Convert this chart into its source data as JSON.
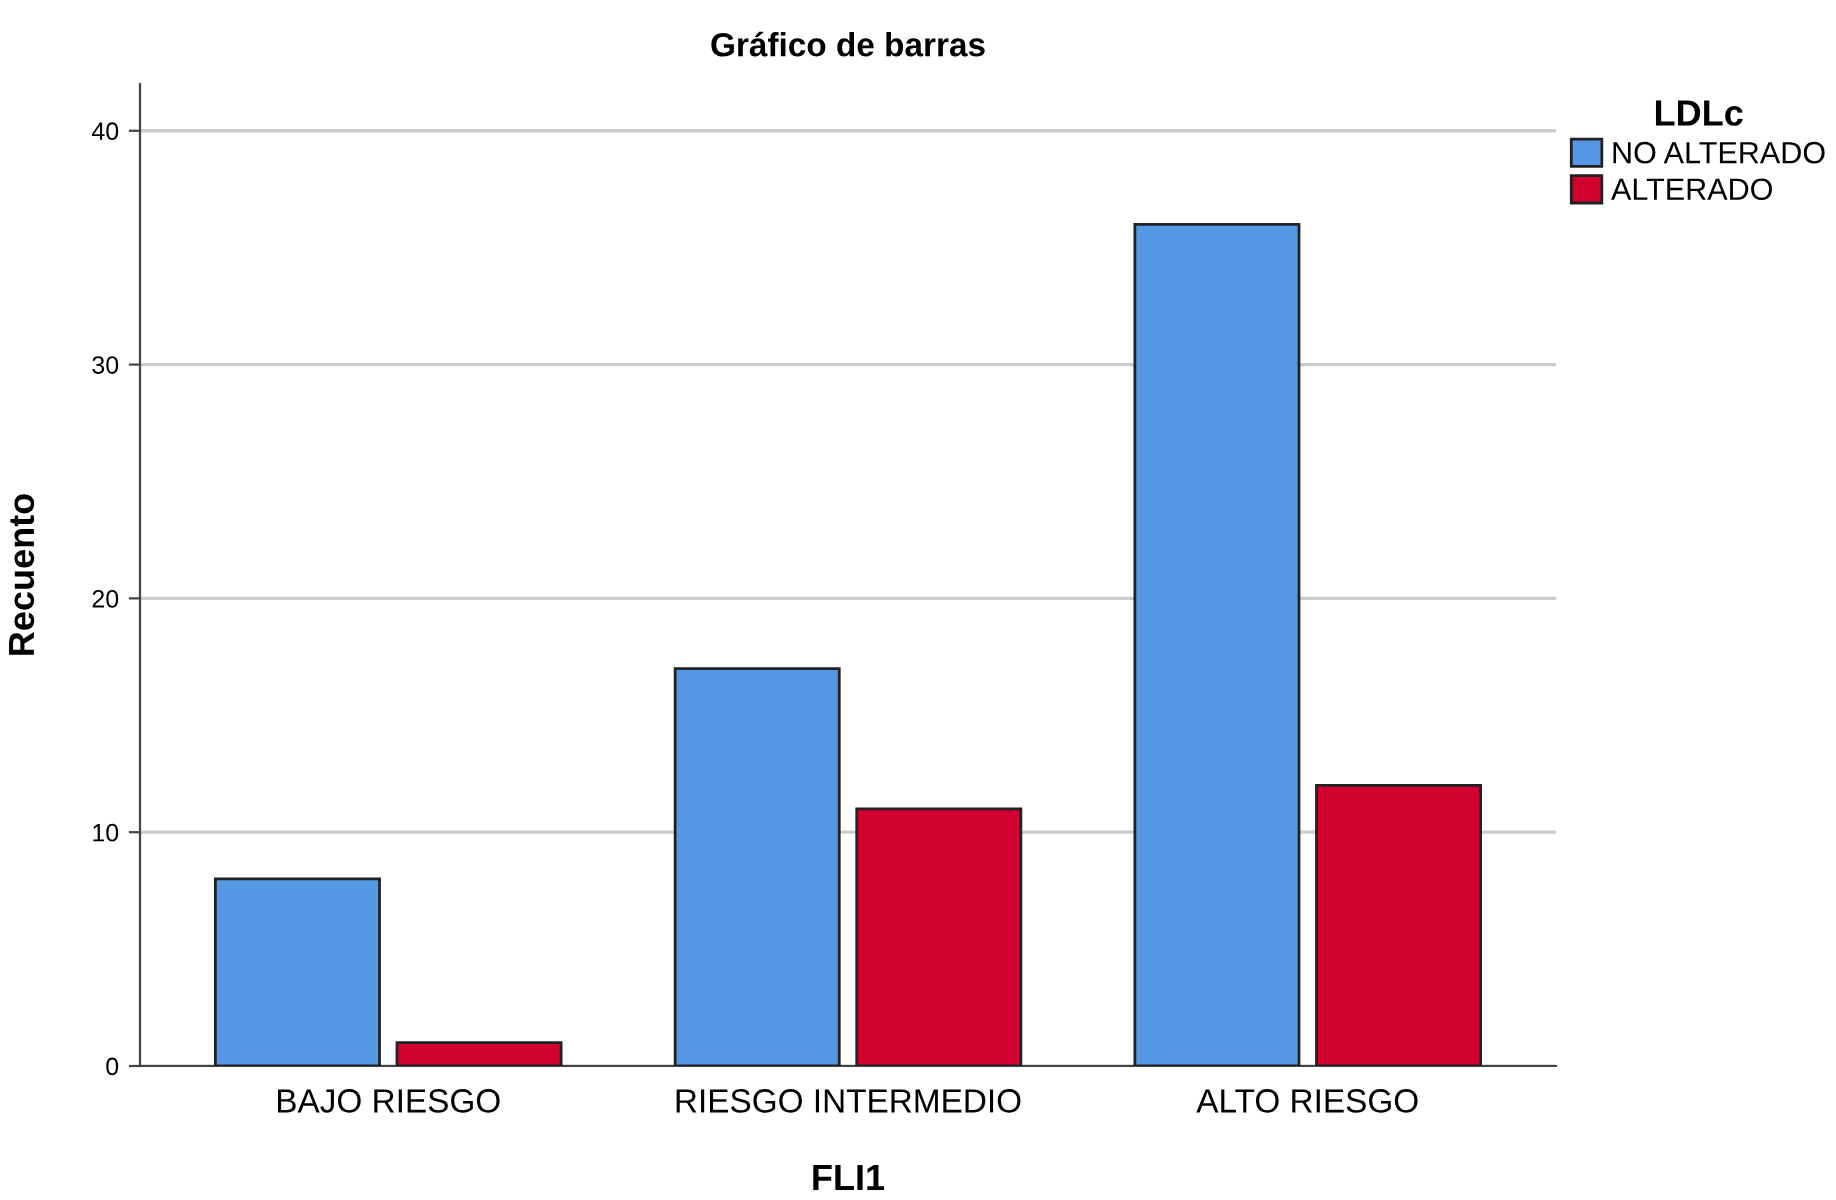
{
  "chart_data": {
    "type": "bar",
    "title": "Gráfico de barras",
    "xlabel": "FLI1",
    "ylabel": "Recuento",
    "legend_title": "LDLc",
    "categories": [
      "BAJO RIESGO",
      "RIESGO INTERMEDIO",
      "ALTO RIESGO"
    ],
    "series": [
      {
        "name": "NO ALTERADO",
        "color": "#5599e6",
        "values": [
          8,
          17,
          36
        ]
      },
      {
        "name": "ALTERADO",
        "color": "#d2002e",
        "values": [
          1,
          11,
          12
        ]
      }
    ],
    "ylim": [
      0,
      42
    ],
    "yticks": [
      0,
      10,
      20,
      30,
      40
    ],
    "grid": "y",
    "legend": "top right"
  }
}
